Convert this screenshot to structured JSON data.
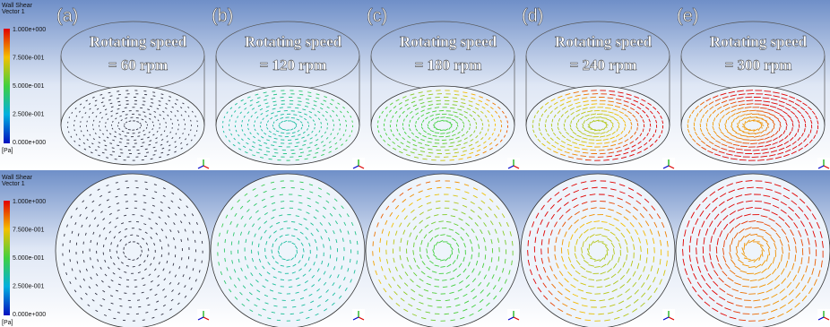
{
  "rows": [
    {
      "legend": {
        "title": "Wall Shear",
        "subtitle": "Vector 1",
        "ticks": [
          "1.000e+000",
          "7.500e-001",
          "5.000e-001",
          "2.500e-001",
          "0.000e+000"
        ],
        "unit": "[Pa]"
      }
    },
    {
      "legend": {
        "title": "Wall Shear",
        "subtitle": "Vector 1",
        "ticks": [
          "1.000e+000",
          "7.500e-001",
          "5.000e-001",
          "2.500e-001",
          "0.000e+000"
        ],
        "unit": "[Pa]"
      }
    }
  ],
  "panels": [
    {
      "label": "(a)",
      "line1": "Rotating speed",
      "line2": "= 60 rpm"
    },
    {
      "label": "(b)",
      "line1": "Rotating speed",
      "line2": "= 120 rpm"
    },
    {
      "label": "(c)",
      "line1": "Rotating speed",
      "line2": "= 180 rpm"
    },
    {
      "label": "(d)",
      "line1": "Rotating speed",
      "line2": "= 240 rpm"
    },
    {
      "label": "(e)",
      "line1": "Rotating speed",
      "line2": "= 300 rpm"
    }
  ]
}
